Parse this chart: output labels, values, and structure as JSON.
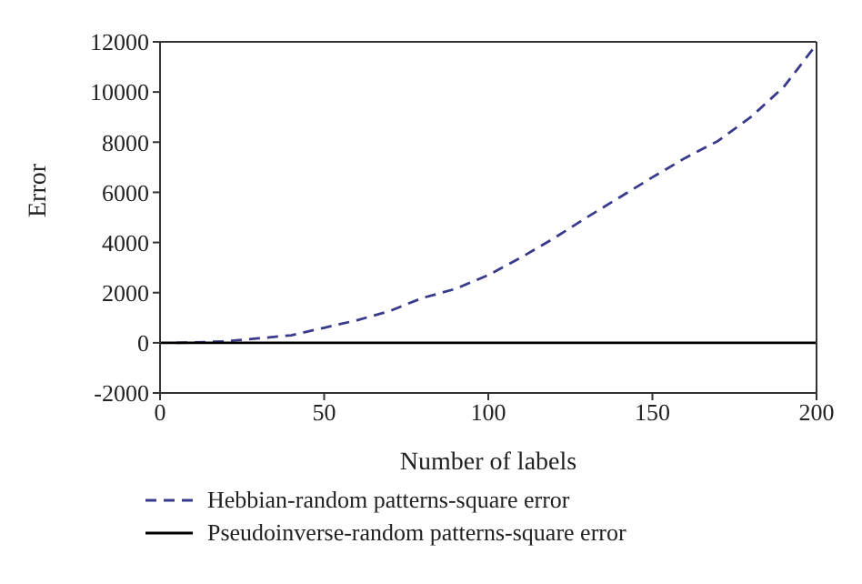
{
  "chart_data": {
    "type": "line",
    "xlabel": "Number of labels",
    "ylabel": "Error",
    "xlim": [
      0,
      200
    ],
    "xticks": [
      0,
      50,
      100,
      150,
      200
    ],
    "ylim": [
      -2000,
      12000
    ],
    "yticks": [
      -2000,
      0,
      2000,
      4000,
      6000,
      8000,
      10000,
      12000
    ],
    "grid": false,
    "legend": "bottom",
    "marker": "none",
    "series": [
      {
        "name": "Hebbian-random patterns-square error",
        "color": "#3a3a8c",
        "line_style": "dashed",
        "x": [
          5,
          10,
          20,
          30,
          40,
          50,
          60,
          70,
          80,
          90,
          100,
          110,
          120,
          130,
          140,
          150,
          160,
          170,
          180,
          190,
          200
        ],
        "values": [
          0,
          10,
          60,
          180,
          300,
          600,
          900,
          1270,
          1790,
          2150,
          2700,
          3400,
          4170,
          5000,
          5800,
          6600,
          7370,
          8050,
          9000,
          10200,
          11900
        ]
      },
      {
        "name": "Pseudoinverse-random patterns-square error",
        "color": "#000000",
        "line_style": "solid",
        "x": [
          0,
          200
        ],
        "values": [
          0,
          0
        ]
      }
    ]
  }
}
